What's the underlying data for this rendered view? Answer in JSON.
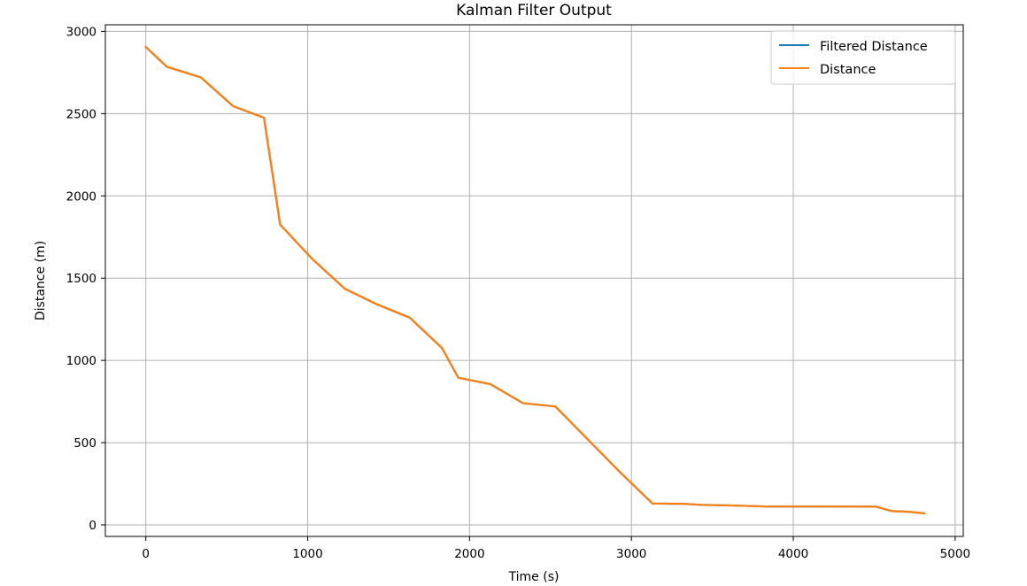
{
  "chart_data": {
    "type": "line",
    "title": "Kalman Filter Output",
    "xlabel": "Time (s)",
    "ylabel": "Distance (m)",
    "xlim": [
      -250,
      5050
    ],
    "ylim": [
      -70,
      3040
    ],
    "xticks": [
      0,
      1000,
      2000,
      3000,
      4000,
      5000
    ],
    "yticks": [
      0,
      500,
      1000,
      1500,
      2000,
      2500,
      3000
    ],
    "grid": true,
    "legend_position": "top-right",
    "series": [
      {
        "name": "Filtered Distance",
        "color": "#1f77b4",
        "x": [
          0,
          130,
          340,
          540,
          730,
          830,
          1030,
          1230,
          1430,
          1630,
          1830,
          1930,
          2130,
          2330,
          2530,
          2730,
          2930,
          3130,
          3330,
          3430,
          3630,
          3830,
          4030,
          4230,
          4510,
          4610,
          4710,
          4810
        ],
        "y": [
          2905,
          2785,
          2720,
          2545,
          2475,
          1825,
          1615,
          1435,
          1340,
          1260,
          1075,
          895,
          855,
          740,
          720,
          520,
          320,
          130,
          128,
          122,
          118,
          112,
          112,
          112,
          111,
          84,
          80,
          70
        ]
      },
      {
        "name": "Distance",
        "color": "#ff7f0e",
        "x": [
          0,
          130,
          340,
          540,
          730,
          830,
          1030,
          1230,
          1430,
          1630,
          1830,
          1930,
          2130,
          2330,
          2530,
          2730,
          2930,
          3130,
          3330,
          3430,
          3630,
          3830,
          4030,
          4230,
          4510,
          4610,
          4710,
          4810
        ],
        "y": [
          2905,
          2785,
          2720,
          2545,
          2475,
          1825,
          1615,
          1435,
          1340,
          1260,
          1075,
          895,
          855,
          740,
          720,
          520,
          320,
          130,
          128,
          122,
          118,
          112,
          112,
          112,
          111,
          84,
          80,
          70
        ]
      }
    ]
  }
}
